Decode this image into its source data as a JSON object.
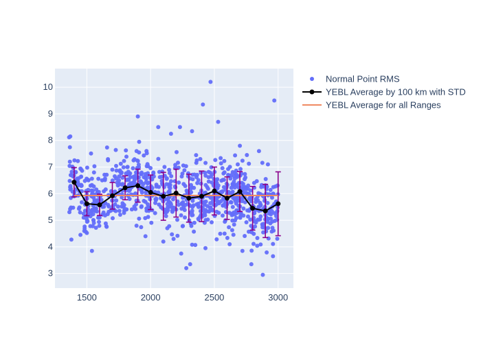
{
  "chart_data": {
    "type": "scatter",
    "xlim": [
      1250,
      3120
    ],
    "ylim": [
      2.45,
      10.7
    ],
    "x_ticks": [
      1500,
      2000,
      2500,
      3000
    ],
    "y_ticks": [
      3,
      4,
      5,
      6,
      7,
      8,
      9,
      10
    ],
    "grid": true,
    "legend_position": "top-right",
    "colors": {
      "plot_bg": "#e5ecf6",
      "grid": "#ffffff",
      "points": "#636efa",
      "average_line": "#000000",
      "error_bars": "#8b008b",
      "overall_line": "#ef8a62"
    },
    "series": [
      {
        "name": "Normal Point RMS",
        "kind": "scatter",
        "sample_points": [
          [
            1370,
            8.15
          ],
          [
            1380,
            6.7
          ],
          [
            1400,
            5.9
          ],
          [
            1420,
            6.4
          ],
          [
            1450,
            4.45
          ],
          [
            1540,
            3.85
          ],
          [
            1555,
            4.9
          ],
          [
            1620,
            6.5
          ],
          [
            1700,
            6.9
          ],
          [
            1780,
            6.6
          ],
          [
            1900,
            8.9
          ],
          [
            1910,
            7.95
          ],
          [
            1960,
            4.4
          ],
          [
            2060,
            8.5
          ],
          [
            2100,
            4.2
          ],
          [
            2160,
            8.25
          ],
          [
            2180,
            4.3
          ],
          [
            2230,
            8.5
          ],
          [
            2240,
            3.75
          ],
          [
            2280,
            3.2
          ],
          [
            2310,
            3.35
          ],
          [
            2325,
            8.35
          ],
          [
            2390,
            7.3
          ],
          [
            2410,
            9.35
          ],
          [
            2430,
            3.95
          ],
          [
            2470,
            10.2
          ],
          [
            2530,
            8.7
          ],
          [
            2580,
            4.5
          ],
          [
            2620,
            4.1
          ],
          [
            2700,
            7.8
          ],
          [
            2720,
            3.85
          ],
          [
            2790,
            3.35
          ],
          [
            2850,
            7.6
          ],
          [
            2880,
            2.95
          ],
          [
            2920,
            7.1
          ],
          [
            2960,
            3.65
          ],
          [
            2970,
            9.5
          ],
          [
            2990,
            5.3
          ]
        ]
      },
      {
        "name": "YEBL Average by 100 km with STD",
        "kind": "line",
        "x": [
          1400,
          1500,
          1600,
          1700,
          1800,
          1900,
          2000,
          2100,
          2200,
          2300,
          2400,
          2500,
          2600,
          2700,
          2800,
          2900,
          3000
        ],
        "y": [
          6.43,
          5.62,
          5.58,
          5.92,
          6.22,
          6.3,
          6.05,
          5.9,
          6.02,
          5.83,
          5.9,
          6.1,
          5.83,
          6.08,
          5.45,
          5.35,
          5.62
        ],
        "std": [
          0.55,
          0.45,
          0.4,
          0.5,
          0.45,
          0.62,
          0.65,
          0.9,
          0.9,
          0.9,
          0.95,
          0.9,
          0.8,
          0.75,
          0.82,
          1.0,
          1.2
        ]
      },
      {
        "name": "YEBL Average for all Ranges",
        "kind": "line",
        "x": [
          1400,
          3000
        ],
        "y": [
          5.93,
          5.93
        ]
      }
    ]
  }
}
